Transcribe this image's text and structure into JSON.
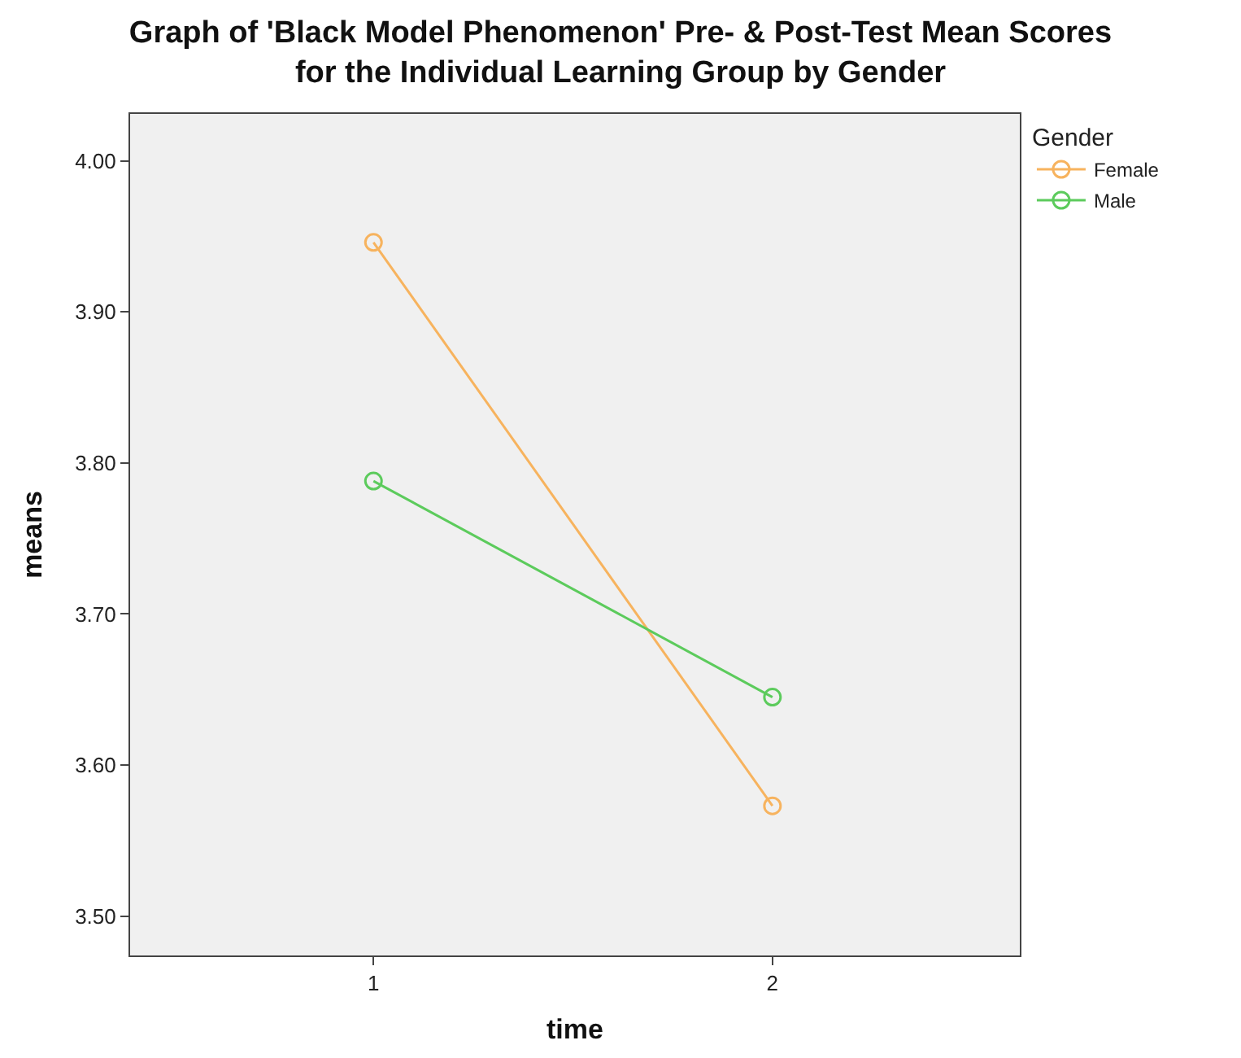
{
  "chart_data": {
    "type": "line",
    "title": "Graph of 'Black Model Phenomenon' Pre- & Post-Test Mean Scores\nfor the Individual Learning Group by Gender",
    "xlabel": "time",
    "ylabel": "means",
    "legend_title": "Gender",
    "x": [
      1,
      2
    ],
    "series": [
      {
        "name": "Female",
        "color": "#f7b35e",
        "values": [
          3.946,
          3.573
        ]
      },
      {
        "name": "Male",
        "color": "#5ccb5c",
        "values": [
          3.788,
          3.645
        ]
      }
    ],
    "xlim": [
      0.39,
      2.62
    ],
    "xticks": [
      1,
      2
    ],
    "ylim": [
      3.474,
      4.031
    ],
    "yticks": [
      {
        "value": 3.5,
        "label": "3.50"
      },
      {
        "value": 3.6,
        "label": "3.60"
      },
      {
        "value": 3.7,
        "label": "3.70"
      },
      {
        "value": 3.8,
        "label": "3.80"
      },
      {
        "value": 3.9,
        "label": "3.90"
      },
      {
        "value": 4.0,
        "label": "4.00"
      }
    ],
    "grid": false,
    "legend": "top right",
    "marker": "circle",
    "line_style": "solid"
  }
}
